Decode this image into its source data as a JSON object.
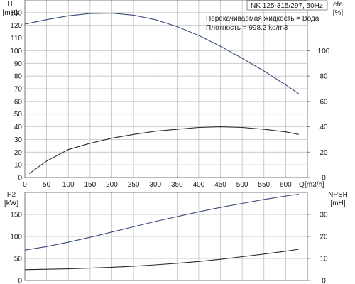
{
  "chart_data": [
    {
      "type": "line",
      "title_box": "NK 125-315/297, 50Hz",
      "info_lines": [
        "Перекачиваемая жидкость = Вода",
        "Плотность = 998.2 kg/m3"
      ],
      "xlabel": "Q",
      "xunit": "[m3/h]",
      "xlim": [
        0,
        650
      ],
      "xticks": [
        0,
        50,
        100,
        150,
        200,
        250,
        300,
        350,
        400,
        450,
        500,
        550,
        600
      ],
      "y_left": {
        "label": "H",
        "unit": "[mH]",
        "lim": [
          0,
          140
        ],
        "ticks": [
          0,
          10,
          20,
          30,
          40,
          50,
          60,
          70,
          80,
          90,
          100,
          110,
          120,
          130
        ]
      },
      "y_right": {
        "label": "eta",
        "unit": "[%]",
        "lim": [
          0,
          140
        ],
        "ticks": [
          0,
          20,
          40,
          60,
          80,
          100
        ]
      },
      "series": [
        {
          "axis": "left",
          "color": "#3a4a78",
          "points": [
            [
              0,
              121
            ],
            [
              50,
              124.5
            ],
            [
              100,
              127.5
            ],
            [
              150,
              129.3
            ],
            [
              200,
              129.6
            ],
            [
              250,
              128
            ],
            [
              300,
              124.5
            ],
            [
              350,
              119
            ],
            [
              400,
              112
            ],
            [
              450,
              103.5
            ],
            [
              500,
              94
            ],
            [
              550,
              84
            ],
            [
              600,
              73
            ],
            [
              630,
              66
            ]
          ]
        },
        {
          "axis": "right",
          "color": "#2a2a2a",
          "points": [
            [
              10,
              3
            ],
            [
              50,
              13
            ],
            [
              100,
              22
            ],
            [
              150,
              27
            ],
            [
              200,
              31
            ],
            [
              250,
              34
            ],
            [
              300,
              36.5
            ],
            [
              350,
              38
            ],
            [
              400,
              39.5
            ],
            [
              450,
              40
            ],
            [
              500,
              39.5
            ],
            [
              550,
              38
            ],
            [
              600,
              36
            ],
            [
              630,
              34
            ]
          ]
        }
      ]
    },
    {
      "type": "line",
      "xlim": [
        0,
        650
      ],
      "xticks": [
        0,
        50,
        100,
        150,
        200,
        250,
        300,
        350,
        400,
        450,
        500,
        550,
        600
      ],
      "y_left": {
        "label": "P2",
        "unit": "[kW]",
        "lim": [
          0,
          200
        ],
        "ticks": [
          0,
          50,
          100,
          150
        ]
      },
      "y_right": {
        "label": "NPSH",
        "unit": "[mH]",
        "lim": [
          0,
          40
        ],
        "ticks": [
          0,
          10,
          20,
          30
        ]
      },
      "series": [
        {
          "axis": "left",
          "color": "#3a4a78",
          "points": [
            [
              0,
              69
            ],
            [
              50,
              77
            ],
            [
              100,
              87
            ],
            [
              150,
              98
            ],
            [
              200,
              110
            ],
            [
              250,
              122
            ],
            [
              300,
              134
            ],
            [
              350,
              145
            ],
            [
              400,
              156
            ],
            [
              450,
              166
            ],
            [
              500,
              175
            ],
            [
              550,
              184
            ],
            [
              600,
              192
            ],
            [
              630,
              196
            ]
          ]
        },
        {
          "axis": "right",
          "color": "#2a2a2a",
          "points": [
            [
              0,
              4.9
            ],
            [
              50,
              5.1
            ],
            [
              100,
              5.3
            ],
            [
              150,
              5.6
            ],
            [
              200,
              6.0
            ],
            [
              250,
              6.5
            ],
            [
              300,
              7.1
            ],
            [
              350,
              7.8
            ],
            [
              400,
              8.6
            ],
            [
              450,
              9.6
            ],
            [
              500,
              10.8
            ],
            [
              550,
              12.0
            ],
            [
              600,
              13.3
            ],
            [
              630,
              14.2
            ]
          ]
        }
      ]
    }
  ]
}
